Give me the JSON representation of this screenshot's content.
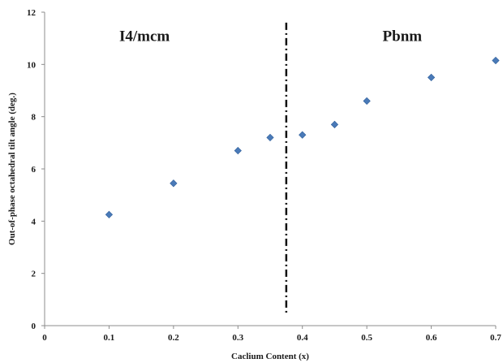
{
  "chart_data": {
    "type": "scatter",
    "title": "",
    "xlabel": "Caclium Content (x)",
    "ylabel": "Out-of-phase octahedral tilt angle (deg.)",
    "xlim": [
      0,
      0.7
    ],
    "ylim": [
      0,
      12
    ],
    "x_ticks": [
      "0",
      "0.1",
      "0.2",
      "0.3",
      "0.4",
      "0.5",
      "0.6",
      "0.7"
    ],
    "y_ticks": [
      "0",
      "2",
      "4",
      "6",
      "8",
      "10",
      "12"
    ],
    "grid": false,
    "marker": "diamond",
    "marker_color": "#4a7ab8",
    "series": [
      {
        "x": [
          0.1,
          0.2,
          0.3,
          0.35,
          0.4,
          0.45,
          0.5,
          0.6,
          0.7
        ],
        "y": [
          4.25,
          5.45,
          6.7,
          7.2,
          7.3,
          7.7,
          8.6,
          9.5,
          10.15
        ]
      }
    ],
    "phase_boundary": {
      "x": 0.375,
      "style": "dash-dot"
    },
    "annotations": [
      {
        "text": "I4/mcm",
        "x": 0.155,
        "y": 10.9
      },
      {
        "text": "Pbnm",
        "x": 0.555,
        "y": 10.9
      }
    ]
  }
}
